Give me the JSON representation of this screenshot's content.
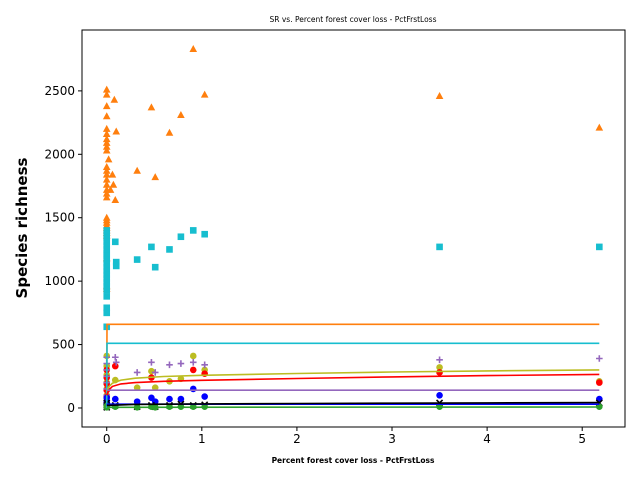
{
  "chart_data": {
    "type": "scatter",
    "title": "SR vs. Percent forest cover loss - PctFrstLoss",
    "xlabel": "Percent forest cover loss - PctFrstLoss",
    "ylabel": "Species richness",
    "xlim": [
      -0.26,
      5.45
    ],
    "ylim": [
      -150,
      2980
    ],
    "xticks": [
      0,
      1,
      2,
      3,
      4,
      5
    ],
    "yticks": [
      0,
      500,
      1000,
      1500,
      2000,
      2500
    ],
    "grid": false,
    "legend": "none",
    "colors": {
      "orange": "#ff7f0e",
      "cyan": "#17becf",
      "olive": "#bcbd22",
      "red": "#ff0000",
      "purple": "#9467bd",
      "blue": "#0000ff",
      "black": "#000000",
      "green": "#2ca02c"
    },
    "series": [
      {
        "color": "#ff7f0e",
        "marker": "triangle",
        "points": [
          [
            0,
            2510
          ],
          [
            0,
            2470
          ],
          [
            0,
            2380
          ],
          [
            0,
            2300
          ],
          [
            0,
            2200
          ],
          [
            0,
            2160
          ],
          [
            0,
            2120
          ],
          [
            0,
            2090
          ],
          [
            0,
            2060
          ],
          [
            0,
            2030
          ],
          [
            0,
            1900
          ],
          [
            0,
            1870
          ],
          [
            0,
            1840
          ],
          [
            0,
            1800
          ],
          [
            0,
            1760
          ],
          [
            0,
            1720
          ],
          [
            0,
            1690
          ],
          [
            0,
            1660
          ],
          [
            0,
            1500
          ],
          [
            0,
            1480
          ],
          [
            0,
            1460
          ],
          [
            0,
            1440
          ],
          [
            0,
            1420
          ],
          [
            0,
            1400
          ],
          [
            0,
            1380
          ],
          [
            0,
            1360
          ],
          [
            0,
            1180
          ],
          [
            0,
            960
          ],
          [
            0,
            940
          ],
          [
            0.02,
            1960
          ],
          [
            0.04,
            1720
          ],
          [
            0.06,
            1840
          ],
          [
            0.07,
            1760
          ],
          [
            0.08,
            2430
          ],
          [
            0.09,
            1640
          ],
          [
            0.1,
            2180
          ],
          [
            0.32,
            1870
          ],
          [
            0.47,
            2370
          ],
          [
            0.51,
            1820
          ],
          [
            0.66,
            2170
          ],
          [
            0.78,
            2310
          ],
          [
            0.91,
            2830
          ],
          [
            1.03,
            2470
          ],
          [
            3.5,
            2460
          ],
          [
            5.18,
            2210
          ]
        ],
        "fit": [
          [
            0,
            0
          ],
          [
            0.003,
            660
          ],
          [
            5.18,
            660
          ]
        ]
      },
      {
        "color": "#17becf",
        "marker": "square",
        "points": [
          [
            0,
            1400
          ],
          [
            0,
            1370
          ],
          [
            0,
            1340
          ],
          [
            0,
            1310
          ],
          [
            0,
            1280
          ],
          [
            0,
            1250
          ],
          [
            0,
            1220
          ],
          [
            0,
            1200
          ],
          [
            0,
            1170
          ],
          [
            0,
            1140
          ],
          [
            0,
            1110
          ],
          [
            0,
            1080
          ],
          [
            0,
            1050
          ],
          [
            0,
            1020
          ],
          [
            0,
            990
          ],
          [
            0,
            960
          ],
          [
            0,
            930
          ],
          [
            0,
            880
          ],
          [
            0,
            790
          ],
          [
            0,
            750
          ],
          [
            0,
            640
          ],
          [
            0.09,
            1310
          ],
          [
            0.1,
            1150
          ],
          [
            0.1,
            1120
          ],
          [
            0.32,
            1170
          ],
          [
            0.47,
            1270
          ],
          [
            0.51,
            1110
          ],
          [
            0.66,
            1250
          ],
          [
            0.78,
            1350
          ],
          [
            0.91,
            1400
          ],
          [
            1.03,
            1370
          ],
          [
            3.5,
            1270
          ],
          [
            5.18,
            1270
          ]
        ],
        "fit": [
          [
            0,
            0
          ],
          [
            0.003,
            510
          ],
          [
            5.18,
            510
          ]
        ]
      },
      {
        "color": "#bcbd22",
        "marker": "circle",
        "points": [
          [
            0,
            410
          ],
          [
            0,
            330
          ],
          [
            0,
            260
          ],
          [
            0,
            200
          ],
          [
            0,
            150
          ],
          [
            0,
            100
          ],
          [
            0.09,
            220
          ],
          [
            0.32,
            160
          ],
          [
            0.47,
            290
          ],
          [
            0.51,
            160
          ],
          [
            0.66,
            210
          ],
          [
            0.78,
            230
          ],
          [
            0.91,
            410
          ],
          [
            1.03,
            300
          ],
          [
            3.5,
            320
          ],
          [
            5.18,
            210
          ]
        ],
        "fit": [
          [
            0,
            130
          ],
          [
            0.02,
            165
          ],
          [
            0.06,
            195
          ],
          [
            0.15,
            220
          ],
          [
            0.3,
            235
          ],
          [
            0.6,
            248
          ],
          [
            1,
            258
          ],
          [
            2,
            272
          ],
          [
            3,
            284
          ],
          [
            4,
            292
          ],
          [
            5.18,
            300
          ]
        ]
      },
      {
        "color": "#ff0000",
        "marker": "circle",
        "points": [
          [
            0,
            300
          ],
          [
            0,
            240
          ],
          [
            0,
            190
          ],
          [
            0,
            140
          ],
          [
            0,
            90
          ],
          [
            0,
            40
          ],
          [
            0.09,
            330
          ],
          [
            0.47,
            240
          ],
          [
            0.91,
            300
          ],
          [
            1.03,
            270
          ],
          [
            3.5,
            280
          ],
          [
            5.18,
            200
          ]
        ],
        "fit": [
          [
            0,
            100
          ],
          [
            0.02,
            140
          ],
          [
            0.06,
            170
          ],
          [
            0.15,
            190
          ],
          [
            0.3,
            200
          ],
          [
            0.6,
            210
          ],
          [
            1,
            218
          ],
          [
            2,
            232
          ],
          [
            3,
            245
          ],
          [
            4,
            255
          ],
          [
            5.18,
            265
          ]
        ]
      },
      {
        "color": "#9467bd",
        "marker": "plus",
        "points": [
          [
            0,
            400
          ],
          [
            0,
            350
          ],
          [
            0,
            300
          ],
          [
            0,
            250
          ],
          [
            0,
            200
          ],
          [
            0,
            150
          ],
          [
            0,
            100
          ],
          [
            0.09,
            400
          ],
          [
            0.1,
            360
          ],
          [
            0.32,
            280
          ],
          [
            0.47,
            360
          ],
          [
            0.51,
            280
          ],
          [
            0.66,
            340
          ],
          [
            0.78,
            350
          ],
          [
            0.91,
            360
          ],
          [
            1.03,
            340
          ],
          [
            3.5,
            380
          ],
          [
            5.18,
            390
          ]
        ],
        "fit": [
          [
            0,
            140
          ],
          [
            5.18,
            140
          ]
        ]
      },
      {
        "color": "#0000ff",
        "marker": "circle",
        "points": [
          [
            0,
            80
          ],
          [
            0,
            55
          ],
          [
            0,
            30
          ],
          [
            0.09,
            70
          ],
          [
            0.32,
            50
          ],
          [
            0.47,
            80
          ],
          [
            0.51,
            50
          ],
          [
            0.66,
            70
          ],
          [
            0.78,
            70
          ],
          [
            0.91,
            150
          ],
          [
            1.03,
            90
          ],
          [
            3.5,
            100
          ],
          [
            5.18,
            70
          ]
        ],
        "fit": [
          [
            0,
            30
          ],
          [
            5.18,
            30
          ]
        ]
      },
      {
        "color": "#000000",
        "marker": "x",
        "points": [
          [
            0,
            40
          ],
          [
            0,
            20
          ],
          [
            0,
            5
          ],
          [
            0.09,
            20
          ],
          [
            0.32,
            10
          ],
          [
            0.47,
            20
          ],
          [
            0.51,
            10
          ],
          [
            0.66,
            20
          ],
          [
            0.78,
            30
          ],
          [
            0.91,
            20
          ],
          [
            1.03,
            25
          ],
          [
            3.5,
            40
          ],
          [
            5.18,
            40
          ]
        ],
        "fit": [
          [
            0,
            20
          ],
          [
            0.3,
            28
          ],
          [
            1,
            32
          ],
          [
            2,
            35
          ],
          [
            3,
            38
          ],
          [
            4,
            40
          ],
          [
            5.18,
            42
          ]
        ]
      },
      {
        "color": "#2ca02c",
        "marker": "circle",
        "points": [
          [
            0,
            15
          ],
          [
            0,
            5
          ],
          [
            0.09,
            10
          ],
          [
            0.32,
            5
          ],
          [
            0.47,
            10
          ],
          [
            0.51,
            5
          ],
          [
            0.66,
            10
          ],
          [
            0.78,
            10
          ],
          [
            0.91,
            10
          ],
          [
            1.03,
            10
          ],
          [
            3.5,
            10
          ],
          [
            5.18,
            10
          ]
        ],
        "fit": [
          [
            0,
            5
          ],
          [
            5.18,
            8
          ]
        ]
      }
    ]
  }
}
